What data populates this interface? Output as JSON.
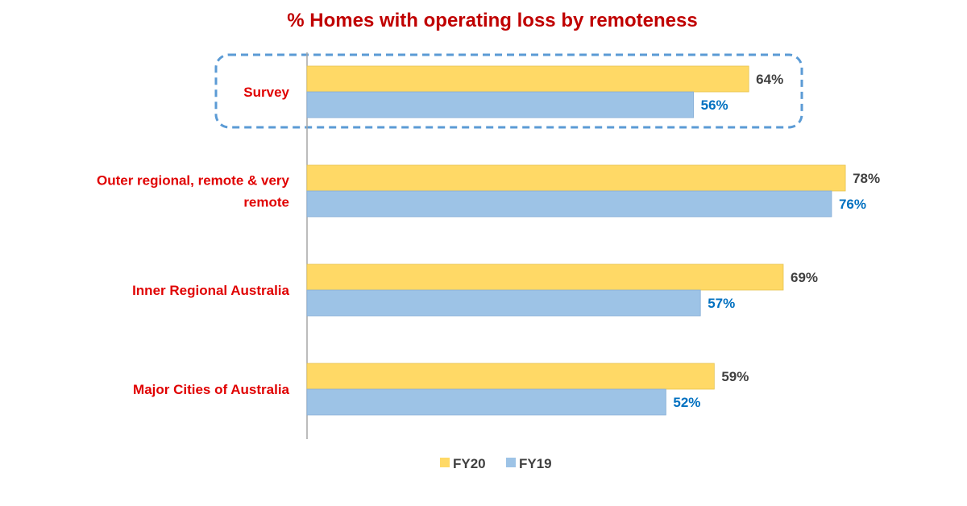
{
  "chart_data": {
    "type": "bar",
    "orientation": "horizontal",
    "title": "% Homes with operating loss by remoteness",
    "categories": [
      "Survey",
      "Outer regional, remote & very remote",
      "Inner Regional Australia",
      "Major Cities of Australia"
    ],
    "category_lines": [
      [
        "Survey"
      ],
      [
        "Outer regional, remote & very",
        "remote"
      ],
      [
        "Inner Regional Australia"
      ],
      [
        "Major Cities of Australia"
      ]
    ],
    "series": [
      {
        "name": "FY20",
        "values": [
          64,
          78,
          69,
          59
        ],
        "labels": [
          "64%",
          "78%",
          "69%",
          "59%"
        ],
        "color": "#FFD966",
        "label_color": "#404040"
      },
      {
        "name": "FY19",
        "values": [
          56,
          76,
          57,
          52
        ],
        "labels": [
          "56%",
          "76%",
          "57%",
          "52%"
        ],
        "color": "#9DC3E6",
        "label_color": "#0070C0"
      }
    ],
    "xlim": [
      0,
      95
    ],
    "grid": false,
    "legend": "bottom",
    "highlighted_category": "Survey",
    "highlight_color": "#5B9BD5",
    "category_label_color": "#E00000",
    "title_color": "#C00000"
  }
}
